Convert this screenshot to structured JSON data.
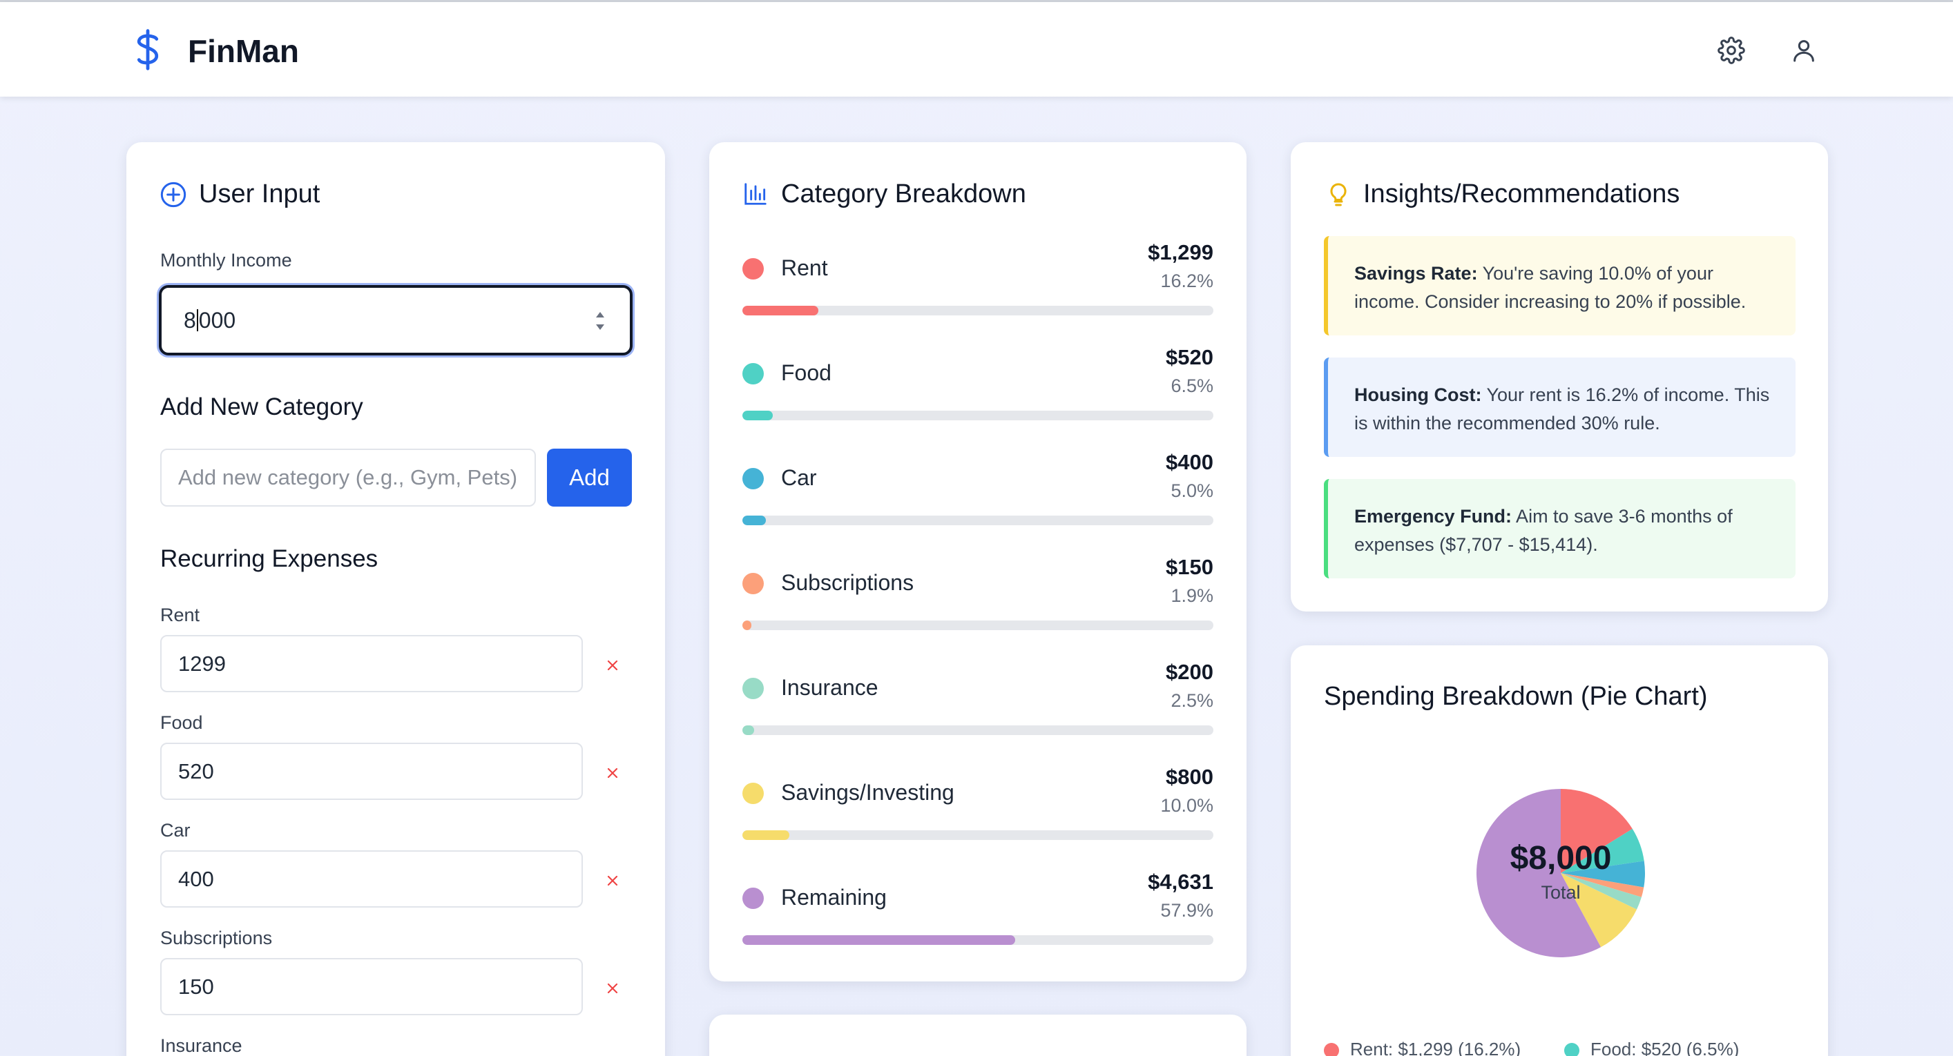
{
  "app": {
    "name": "FinMan"
  },
  "header": {
    "settings_icon": "gear-icon",
    "profile_icon": "user-icon"
  },
  "user_input": {
    "title": "User Input",
    "income_label": "Monthly Income",
    "income_value": "8000",
    "add_category_title": "Add New Category",
    "add_category_placeholder": "Add new category (e.g., Gym, Pets)",
    "add_button": "Add",
    "recurring_title": "Recurring Expenses",
    "expenses": [
      {
        "label": "Rent",
        "value": "1299"
      },
      {
        "label": "Food",
        "value": "520"
      },
      {
        "label": "Car",
        "value": "400"
      },
      {
        "label": "Subscriptions",
        "value": "150"
      }
    ],
    "next_label": "Insurance",
    "delete_symbol": "×"
  },
  "breakdown": {
    "title": "Category Breakdown",
    "items": [
      {
        "name": "Rent",
        "amount": "$1,299",
        "pct": "16.2%",
        "fraction": 0.162,
        "color": "#f87171"
      },
      {
        "name": "Food",
        "amount": "$520",
        "pct": "6.5%",
        "fraction": 0.065,
        "color": "#4fd1c5"
      },
      {
        "name": "Car",
        "amount": "$400",
        "pct": "5.0%",
        "fraction": 0.05,
        "color": "#45b3d6"
      },
      {
        "name": "Subscriptions",
        "amount": "$150",
        "pct": "1.9%",
        "fraction": 0.019,
        "color": "#fca07a"
      },
      {
        "name": "Insurance",
        "amount": "$200",
        "pct": "2.5%",
        "fraction": 0.025,
        "color": "#98dbc6"
      },
      {
        "name": "Savings/Investing",
        "amount": "$800",
        "pct": "10.0%",
        "fraction": 0.1,
        "color": "#f6dc6b"
      },
      {
        "name": "Remaining",
        "amount": "$4,631",
        "pct": "57.9%",
        "fraction": 0.579,
        "color": "#b98fd0"
      }
    ]
  },
  "insights": {
    "title": "Insights/Recommendations",
    "cards": [
      {
        "bold": "Savings Rate:",
        "text": " You're saving 10.0% of your income. Consider increasing to 20% if possible.",
        "bg": "#fefbe8",
        "border": "#f4c72b"
      },
      {
        "bold": "Housing Cost:",
        "text": " Your rent is 16.2% of income. This is within the recommended 30% rule.",
        "bg": "#eef3fd",
        "border": "#5b9cf1"
      },
      {
        "bold": "Emergency Fund:",
        "text": " Aim to save 3-6 months of expenses ($7,707 - $15,414).",
        "bg": "#eefbf1",
        "border": "#4ade80"
      }
    ]
  },
  "pie": {
    "title": "Spending Breakdown (Pie Chart)",
    "total": "$8,000",
    "total_label": "Total",
    "legend": [
      {
        "text": "Rent: $1,299 (16.2%)",
        "color": "#f87171"
      },
      {
        "text": "Food: $520 (6.5%)",
        "color": "#4fd1c5"
      }
    ]
  }
}
